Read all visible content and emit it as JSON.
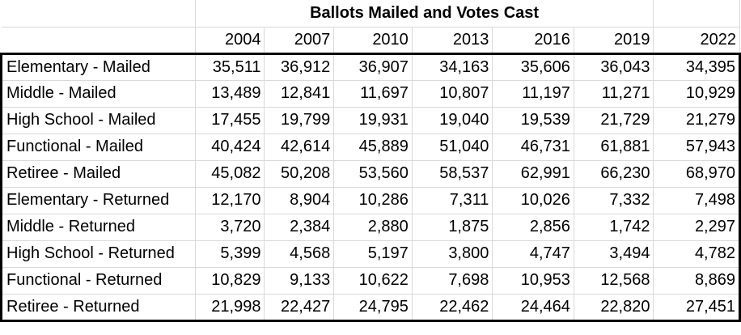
{
  "table": {
    "title": "Ballots Mailed and Votes Cast",
    "years": [
      "2004",
      "2007",
      "2010",
      "2013",
      "2016",
      "2019",
      "2022"
    ],
    "rows": [
      {
        "label": "Elementary - Mailed",
        "values": [
          "35,511",
          "36,912",
          "36,907",
          "34,163",
          "35,606",
          "36,043",
          "34,395"
        ]
      },
      {
        "label": "Middle - Mailed",
        "values": [
          "13,489",
          "12,841",
          "11,697",
          "10,807",
          "11,197",
          "11,271",
          "10,929"
        ]
      },
      {
        "label": "High School - Mailed",
        "values": [
          "17,455",
          "19,799",
          "19,931",
          "19,040",
          "19,539",
          "21,729",
          "21,279"
        ]
      },
      {
        "label": "Functional - Mailed",
        "values": [
          "40,424",
          "42,614",
          "45,889",
          "51,040",
          "46,731",
          "61,881",
          "57,943"
        ]
      },
      {
        "label": "Retiree - Mailed",
        "values": [
          "45,082",
          "50,208",
          "53,560",
          "58,537",
          "62,991",
          "66,230",
          "68,970"
        ]
      },
      {
        "label": "Elementary - Returned",
        "values": [
          "12,170",
          "8,904",
          "10,286",
          "7,311",
          "10,026",
          "7,332",
          "7,498"
        ]
      },
      {
        "label": "Middle - Returned",
        "values": [
          "3,720",
          "2,384",
          "2,880",
          "1,875",
          "2,856",
          "1,742",
          "2,297"
        ]
      },
      {
        "label": "High School - Returned",
        "values": [
          "5,399",
          "4,568",
          "5,197",
          "3,800",
          "4,747",
          "3,494",
          "4,782"
        ]
      },
      {
        "label": "Functional - Returned",
        "values": [
          "10,829",
          "9,133",
          "10,622",
          "7,698",
          "10,953",
          "12,568",
          "8,869"
        ]
      },
      {
        "label": "Retiree - Returned",
        "values": [
          "21,998",
          "22,427",
          "24,795",
          "22,462",
          "24,464",
          "22,820",
          "27,451"
        ]
      }
    ]
  }
}
